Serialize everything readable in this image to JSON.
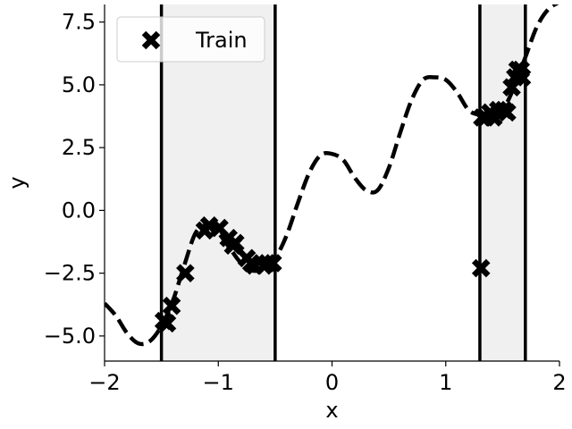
{
  "chart_data": {
    "type": "scatter",
    "xlabel": "x",
    "ylabel": "y",
    "xlim": [
      -2,
      2
    ],
    "ylim": [
      -6.0,
      8.2
    ],
    "x_ticks": [
      -2,
      -1,
      0,
      1,
      2
    ],
    "x_tick_labels": [
      "−2",
      "−1",
      "0",
      "1",
      "2"
    ],
    "y_ticks": [
      -5.0,
      -2.5,
      0.0,
      2.5,
      5.0,
      7.5
    ],
    "y_tick_labels": [
      "−5.0",
      "−2.5",
      "0.0",
      "2.5",
      "5.0",
      "7.5"
    ],
    "grid": false,
    "legend": {
      "position": "top-left",
      "entries": [
        {
          "label": "Train",
          "marker": "X",
          "color": "#000000"
        }
      ]
    },
    "shaded_regions": [
      {
        "x_start": -1.5,
        "x_end": -0.5,
        "color": "#f0f0f0"
      },
      {
        "x_start": 1.3,
        "x_end": 1.7,
        "color": "#f0f0f0"
      }
    ],
    "vertical_lines": [
      -1.5,
      -0.5,
      1.3,
      1.7
    ],
    "series": [
      {
        "kind": "line",
        "style": "dashed",
        "color": "#000000",
        "x": [
          -2.0,
          -1.9,
          -1.8,
          -1.7,
          -1.6,
          -1.5,
          -1.4,
          -1.3,
          -1.2,
          -1.1,
          -1.0,
          -0.9,
          -0.8,
          -0.7,
          -0.6,
          -0.5,
          -0.4,
          -0.3,
          -0.2,
          -0.1,
          0.0,
          0.1,
          0.2,
          0.3,
          0.4,
          0.5,
          0.6,
          0.7,
          0.8,
          0.9,
          1.0,
          1.1,
          1.2,
          1.3,
          1.4,
          1.5,
          1.6,
          1.7,
          1.8,
          1.9,
          2.0
        ],
        "y": [
          -3.7,
          -4.2,
          -4.9,
          -5.3,
          -5.2,
          -4.6,
          -3.6,
          -2.2,
          -0.9,
          -0.6,
          -0.9,
          -1.5,
          -2.1,
          -2.4,
          -2.3,
          -1.9,
          -1.0,
          0.3,
          1.5,
          2.2,
          2.25,
          2.0,
          1.3,
          0.8,
          0.8,
          1.7,
          3.1,
          4.4,
          5.2,
          5.3,
          5.2,
          4.7,
          4.0,
          3.8,
          3.8,
          4.0,
          4.9,
          6.1,
          7.3,
          8.0,
          8.3
        ]
      },
      {
        "name": "Train",
        "kind": "scatter",
        "marker": "X",
        "color": "#000000",
        "points": [
          [
            -1.48,
            -4.4
          ],
          [
            -1.45,
            -4.5
          ],
          [
            -1.41,
            -3.8
          ],
          [
            -1.29,
            -2.5
          ],
          [
            -1.12,
            -0.8
          ],
          [
            -1.08,
            -0.6
          ],
          [
            -0.99,
            -0.7
          ],
          [
            -0.91,
            -1.1
          ],
          [
            -0.87,
            -1.4
          ],
          [
            -0.85,
            -1.3
          ],
          [
            -0.75,
            -1.9
          ],
          [
            -0.71,
            -2.1
          ],
          [
            -0.68,
            -2.2
          ],
          [
            -0.6,
            -2.2
          ],
          [
            -0.57,
            -2.1
          ],
          [
            -0.52,
            -2.1
          ],
          [
            1.31,
            -2.3
          ],
          [
            1.32,
            3.7
          ],
          [
            1.35,
            3.7
          ],
          [
            1.39,
            3.9
          ],
          [
            1.42,
            3.7
          ],
          [
            1.46,
            4.0
          ],
          [
            1.51,
            4.0
          ],
          [
            1.54,
            3.9
          ],
          [
            1.58,
            4.9
          ],
          [
            1.61,
            5.3
          ],
          [
            1.63,
            5.6
          ],
          [
            1.67,
            5.3
          ],
          [
            1.66,
            5.6
          ]
        ]
      }
    ]
  }
}
